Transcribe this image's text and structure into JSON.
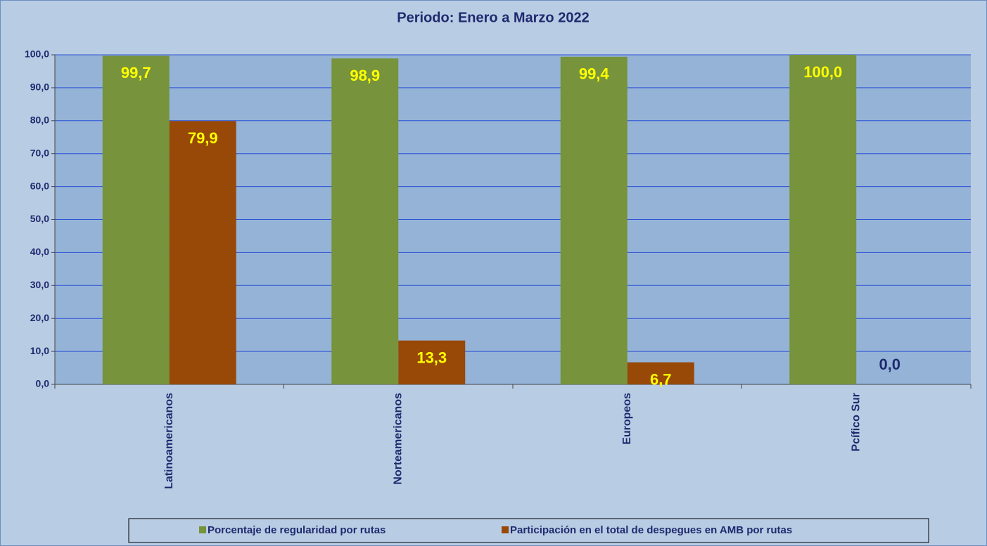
{
  "chart_data": {
    "type": "bar",
    "title": "Periodo: Enero a Marzo  2022",
    "categories": [
      "Latinoamericanos",
      "Norteamericanos",
      "Europeos",
      "Pcífico Sur"
    ],
    "series": [
      {
        "name": "Porcentaje de regularidad por rutas",
        "color": "#77933c",
        "values": [
          99.7,
          98.9,
          99.4,
          100.0
        ],
        "value_labels": [
          "99,7",
          "98,9",
          "99,4",
          "100,0"
        ]
      },
      {
        "name": "Participación en el total de despegues en AMB por rutas",
        "color": "#984807",
        "values": [
          79.9,
          13.3,
          6.7,
          0.0
        ],
        "value_labels": [
          "79,9",
          "13,3",
          "6,7",
          "0,0"
        ]
      }
    ],
    "ylim": [
      0,
      100
    ],
    "yticks": [
      {
        "value": 0,
        "label": "0,0"
      },
      {
        "value": 10,
        "label": "10,0"
      },
      {
        "value": 20,
        "label": "20,0"
      },
      {
        "value": 30,
        "label": "30,0"
      },
      {
        "value": 40,
        "label": "40,0"
      },
      {
        "value": 50,
        "label": "50,0"
      },
      {
        "value": 60,
        "label": "60,0"
      },
      {
        "value": 70,
        "label": "70,0"
      },
      {
        "value": 80,
        "label": "80,0"
      },
      {
        "value": 90,
        "label": "90,0"
      },
      {
        "value": 100,
        "label": "100,0"
      }
    ],
    "grid": true
  }
}
